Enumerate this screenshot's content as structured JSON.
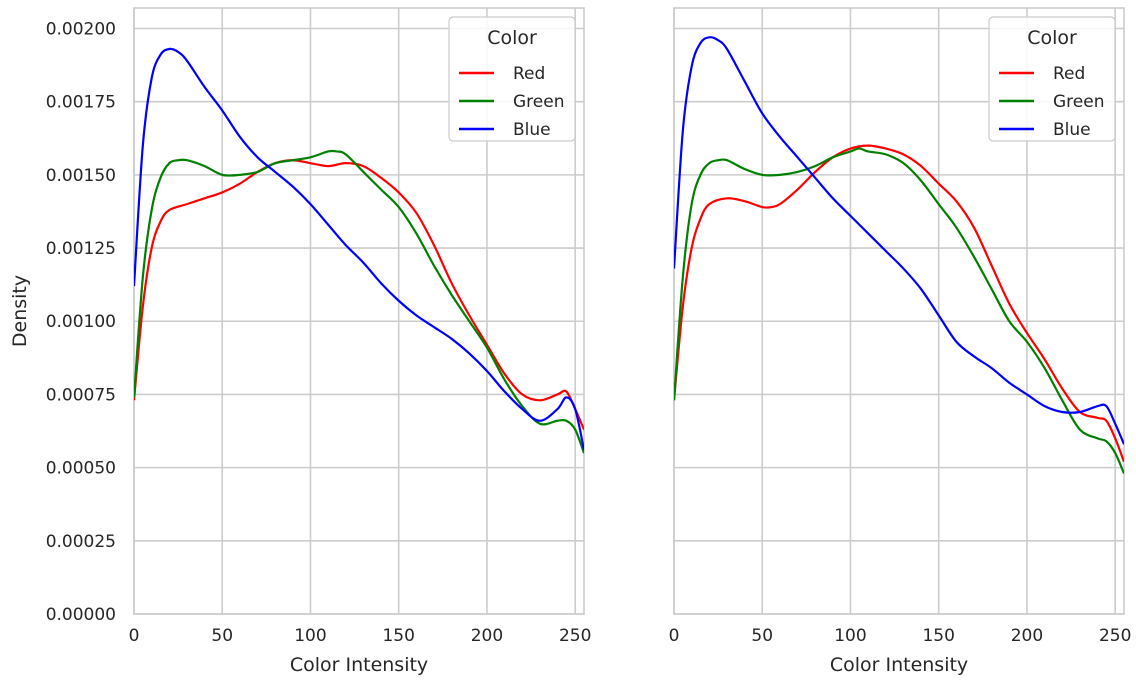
{
  "chart_data": [
    {
      "type": "line",
      "xlabel": "Color Intensity",
      "ylabel": "Density",
      "xlim": [
        0,
        255
      ],
      "ylim": [
        0,
        0.00207
      ],
      "xticks": [
        0,
        50,
        100,
        150,
        200,
        250
      ],
      "yticks": [
        0.0,
        0.00025,
        0.0005,
        0.00075,
        0.001,
        0.00125,
        0.0015,
        0.00175,
        0.002
      ],
      "ytick_labels": [
        "0.00000",
        "0.00025",
        "0.00050",
        "0.00075",
        "0.00100",
        "0.00125",
        "0.00150",
        "0.00175",
        "0.00200"
      ],
      "xtick_labels": [
        "0",
        "50",
        "100",
        "150",
        "200",
        "250"
      ],
      "grid": true,
      "legend": {
        "title": "Color",
        "placement": "top-right"
      },
      "series": [
        {
          "name": "Red",
          "color": "#ff0000",
          "x": [
            0,
            5,
            10,
            15,
            20,
            30,
            40,
            50,
            60,
            70,
            80,
            90,
            100,
            110,
            120,
            130,
            140,
            150,
            160,
            170,
            180,
            190,
            200,
            210,
            220,
            230,
            240,
            245,
            250,
            255
          ],
          "y": [
            0.00073,
            0.00105,
            0.00125,
            0.00134,
            0.00138,
            0.0014,
            0.00142,
            0.00144,
            0.00147,
            0.00151,
            0.00154,
            0.00155,
            0.00154,
            0.00153,
            0.00154,
            0.00153,
            0.00149,
            0.00144,
            0.00137,
            0.00126,
            0.00113,
            0.00102,
            0.00092,
            0.00082,
            0.00075,
            0.00073,
            0.00075,
            0.00076,
            0.0007,
            0.00063
          ]
        },
        {
          "name": "Green",
          "color": "#008000",
          "x": [
            0,
            5,
            10,
            15,
            20,
            25,
            30,
            40,
            50,
            60,
            70,
            80,
            90,
            100,
            110,
            115,
            120,
            130,
            140,
            150,
            160,
            170,
            180,
            190,
            200,
            210,
            220,
            230,
            240,
            245,
            250,
            255
          ],
          "y": [
            0.00074,
            0.00115,
            0.00138,
            0.00149,
            0.00154,
            0.00155,
            0.00155,
            0.00153,
            0.0015,
            0.0015,
            0.00151,
            0.00154,
            0.00155,
            0.00156,
            0.00158,
            0.00158,
            0.00157,
            0.00151,
            0.00145,
            0.00139,
            0.0013,
            0.00119,
            0.00109,
            0.001,
            0.00091,
            0.0008,
            0.00071,
            0.00065,
            0.00066,
            0.00066,
            0.00063,
            0.00055
          ]
        },
        {
          "name": "Blue",
          "color": "#0000ff",
          "x": [
            0,
            5,
            10,
            15,
            20,
            25,
            30,
            40,
            50,
            60,
            70,
            80,
            90,
            100,
            110,
            120,
            130,
            140,
            150,
            160,
            170,
            180,
            190,
            200,
            210,
            220,
            230,
            240,
            245,
            250,
            255
          ],
          "y": [
            0.00112,
            0.0016,
            0.00183,
            0.00191,
            0.00193,
            0.00192,
            0.00189,
            0.0018,
            0.00172,
            0.00163,
            0.00156,
            0.00151,
            0.00146,
            0.0014,
            0.00133,
            0.00126,
            0.0012,
            0.00113,
            0.00107,
            0.00102,
            0.00098,
            0.00094,
            0.00089,
            0.00083,
            0.00076,
            0.0007,
            0.00066,
            0.0007,
            0.00074,
            0.0007,
            0.00056
          ]
        }
      ]
    },
    {
      "type": "line",
      "xlabel": "Color Intensity",
      "ylabel": "",
      "xlim": [
        0,
        255
      ],
      "ylim": [
        0,
        0.00207
      ],
      "xticks": [
        0,
        50,
        100,
        150,
        200,
        250
      ],
      "yticks": [
        0.0,
        0.00025,
        0.0005,
        0.00075,
        0.001,
        0.00125,
        0.0015,
        0.00175,
        0.002
      ],
      "xtick_labels": [
        "0",
        "50",
        "100",
        "150",
        "200",
        "250"
      ],
      "grid": true,
      "legend": {
        "title": "Color",
        "placement": "top-right"
      },
      "series": [
        {
          "name": "Red",
          "color": "#ff0000",
          "x": [
            0,
            5,
            10,
            15,
            20,
            30,
            40,
            50,
            55,
            60,
            70,
            80,
            90,
            100,
            110,
            120,
            130,
            140,
            150,
            160,
            170,
            180,
            190,
            200,
            210,
            220,
            230,
            240,
            245,
            250,
            255
          ],
          "y": [
            0.00073,
            0.00105,
            0.00125,
            0.00135,
            0.0014,
            0.00142,
            0.00141,
            0.00139,
            0.00139,
            0.0014,
            0.00145,
            0.00151,
            0.00156,
            0.00159,
            0.0016,
            0.00159,
            0.00157,
            0.00153,
            0.00147,
            0.00141,
            0.00132,
            0.00119,
            0.00106,
            0.00096,
            0.00087,
            0.00077,
            0.00069,
            0.00067,
            0.00066,
            0.0006,
            0.00052
          ]
        },
        {
          "name": "Green",
          "color": "#008000",
          "x": [
            0,
            5,
            10,
            15,
            20,
            25,
            30,
            40,
            50,
            60,
            70,
            80,
            90,
            100,
            105,
            110,
            120,
            130,
            140,
            150,
            160,
            170,
            180,
            190,
            200,
            210,
            220,
            230,
            240,
            245,
            250,
            255
          ],
          "y": [
            0.00073,
            0.00115,
            0.0014,
            0.0015,
            0.00154,
            0.00155,
            0.00155,
            0.00152,
            0.0015,
            0.0015,
            0.00151,
            0.00153,
            0.00156,
            0.00158,
            0.00159,
            0.00158,
            0.00157,
            0.00154,
            0.00148,
            0.0014,
            0.00132,
            0.00122,
            0.00111,
            0.001,
            0.00093,
            0.00084,
            0.00073,
            0.00063,
            0.0006,
            0.00059,
            0.00055,
            0.00048
          ]
        },
        {
          "name": "Blue",
          "color": "#0000ff",
          "x": [
            0,
            5,
            10,
            15,
            20,
            25,
            30,
            40,
            50,
            60,
            70,
            80,
            90,
            100,
            110,
            120,
            130,
            140,
            150,
            160,
            170,
            180,
            190,
            200,
            210,
            220,
            230,
            240,
            245,
            250,
            255
          ],
          "y": [
            0.00118,
            0.00165,
            0.00187,
            0.00195,
            0.00197,
            0.00196,
            0.00193,
            0.00182,
            0.00171,
            0.00163,
            0.00156,
            0.00149,
            0.00142,
            0.00136,
            0.0013,
            0.00124,
            0.00118,
            0.00111,
            0.00102,
            0.00093,
            0.00088,
            0.00084,
            0.00079,
            0.00075,
            0.00071,
            0.00069,
            0.00069,
            0.00071,
            0.00071,
            0.00065,
            0.00058
          ]
        }
      ]
    }
  ]
}
